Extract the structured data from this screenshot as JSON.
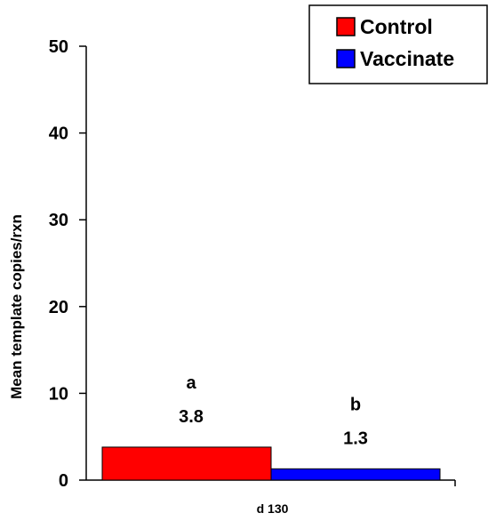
{
  "chart_data": {
    "type": "bar",
    "categories": [
      "d 130"
    ],
    "series": [
      {
        "name": "Control",
        "values": [
          3.8
        ],
        "color": "#ff0000",
        "letter": "a",
        "label": "3.8"
      },
      {
        "name": "Vaccinate",
        "values": [
          1.3
        ],
        "color": "#0000ff",
        "letter": "b",
        "label": "1.3"
      }
    ],
    "ylabel": "Mean template copies/rxn",
    "xlabel": "",
    "ylim": [
      0,
      50
    ],
    "yticks": [
      "0",
      "10",
      "20",
      "30",
      "40",
      "50"
    ],
    "grid": false,
    "legend_position": "top-right"
  }
}
